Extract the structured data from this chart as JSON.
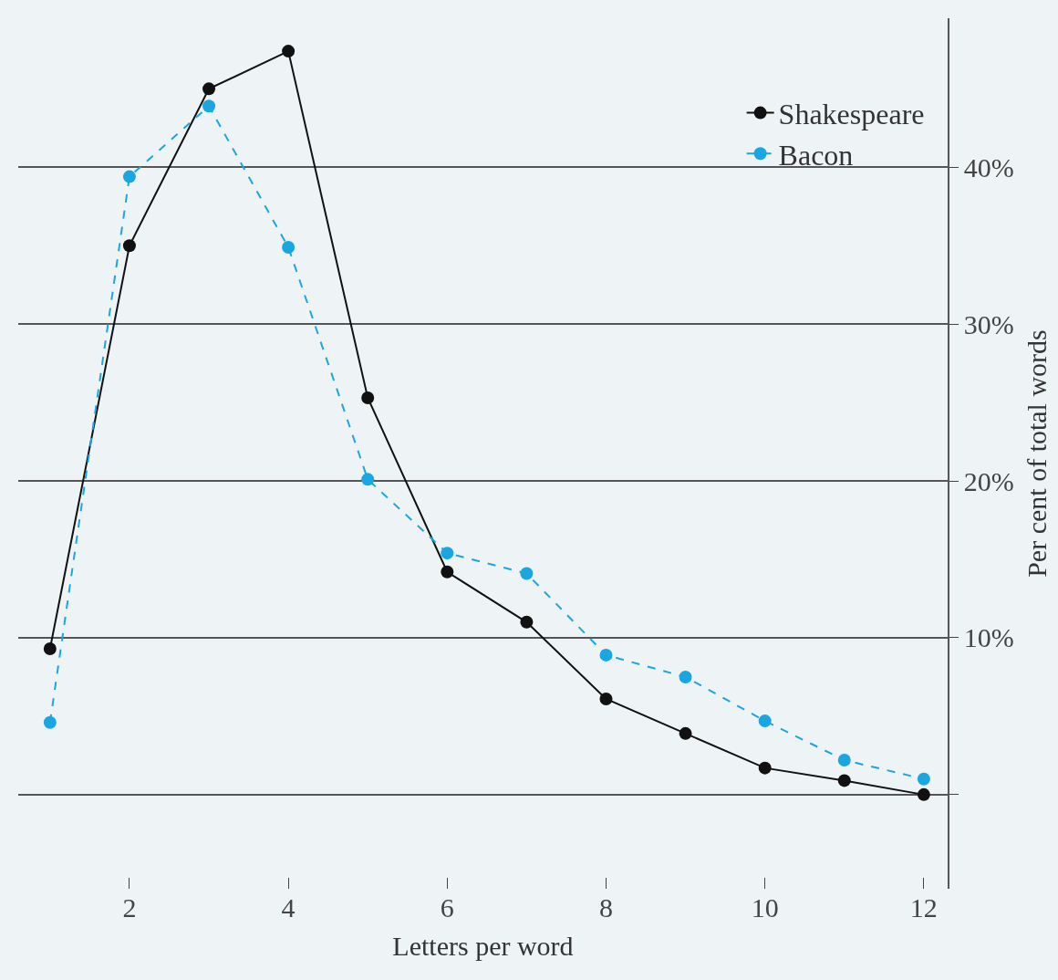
{
  "chart_data": {
    "type": "line",
    "xlabel": "Letters per word",
    "ylabel": "Per cent of total words",
    "x": [
      1,
      2,
      3,
      4,
      5,
      6,
      7,
      8,
      9,
      10,
      11,
      12
    ],
    "series": [
      {
        "name": "Shakespeare",
        "color": "#111111",
        "line_style": "solid",
        "values": [
          9.3,
          35.0,
          45.0,
          47.4,
          25.3,
          14.2,
          11.0,
          6.1,
          3.9,
          1.7,
          0.9,
          0.0
        ]
      },
      {
        "name": "Bacon",
        "color": "#1aa6e0",
        "line_style": "dashed",
        "values": [
          4.6,
          39.4,
          43.9,
          34.9,
          20.1,
          15.4,
          14.1,
          8.9,
          7.5,
          4.7,
          2.2,
          1.0
        ]
      }
    ],
    "xlim": [
      0.6,
      12.3
    ],
    "ylim": [
      -6,
      49.5
    ],
    "xticks": [
      2,
      4,
      6,
      8,
      10,
      12
    ],
    "yticks": [
      {
        "value": 0,
        "label": null
      },
      {
        "value": 10,
        "label": "10%"
      },
      {
        "value": 20,
        "label": "20%"
      },
      {
        "value": 30,
        "label": "30%"
      },
      {
        "value": 40,
        "label": "40%"
      }
    ],
    "grid": "y",
    "marker": "circle",
    "legend": "top right"
  }
}
